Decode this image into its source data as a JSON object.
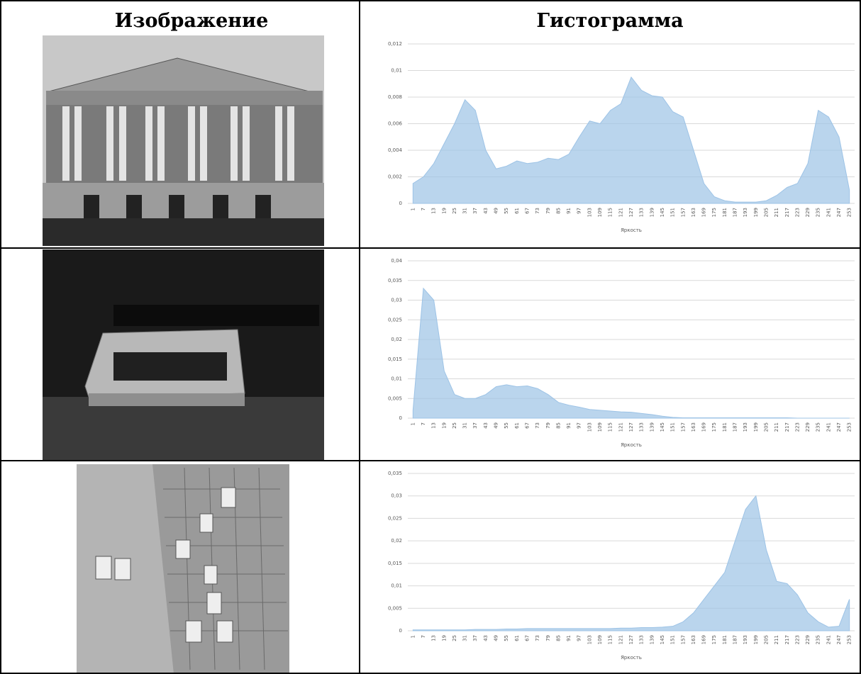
{
  "header": {
    "image": "Изображение",
    "histogram": "Гистограмма"
  },
  "chart_data": [
    {
      "type": "area",
      "x_label": "Яркость",
      "color": "#9dc3e6",
      "categories": [
        "1",
        "7",
        "13",
        "19",
        "25",
        "31",
        "37",
        "43",
        "49",
        "55",
        "61",
        "67",
        "73",
        "79",
        "85",
        "91",
        "97",
        "103",
        "109",
        "115",
        "121",
        "127",
        "133",
        "139",
        "145",
        "151",
        "157",
        "163",
        "169",
        "175",
        "181",
        "187",
        "193",
        "199",
        "205",
        "211",
        "217",
        "223",
        "229",
        "235",
        "241",
        "247",
        "253"
      ],
      "values": [
        0.0015,
        0.002,
        0.003,
        0.0045,
        0.006,
        0.0078,
        0.007,
        0.004,
        0.0026,
        0.0028,
        0.0032,
        0.003,
        0.0031,
        0.0034,
        0.0033,
        0.0037,
        0.005,
        0.0062,
        0.006,
        0.007,
        0.0075,
        0.0095,
        0.0085,
        0.0081,
        0.008,
        0.0069,
        0.0065,
        0.004,
        0.0015,
        0.0005,
        0.0002,
        0.0001,
        0.0001,
        0.0001,
        0.0002,
        0.0006,
        0.0012,
        0.0015,
        0.003,
        0.007,
        0.0065,
        0.005,
        0.001
      ],
      "ylim": [
        0,
        0.012
      ],
      "yticks": [
        0,
        {
          "value": 0.002,
          "label": "0,002"
        },
        {
          "value": 0.004,
          "label": "0,004"
        },
        {
          "value": 0.006,
          "label": "0,006"
        },
        {
          "value": 0.008,
          "label": "0,008"
        },
        {
          "value": 0.01,
          "label": "0,01"
        },
        {
          "value": 0.012,
          "label": "0,012"
        }
      ],
      "grid": true
    },
    {
      "type": "area",
      "x_label": "Яркость",
      "color": "#9dc3e6",
      "categories": [
        "1",
        "7",
        "13",
        "19",
        "25",
        "31",
        "37",
        "43",
        "49",
        "55",
        "61",
        "67",
        "73",
        "79",
        "85",
        "91",
        "97",
        "103",
        "109",
        "115",
        "121",
        "127",
        "133",
        "139",
        "145",
        "151",
        "157",
        "163",
        "169",
        "175",
        "181",
        "187",
        "193",
        "199",
        "205",
        "211",
        "217",
        "223",
        "229",
        "235",
        "241",
        "247",
        "253"
      ],
      "values": [
        0.002,
        0.033,
        0.03,
        0.012,
        0.006,
        0.005,
        0.005,
        0.006,
        0.008,
        0.0085,
        0.008,
        0.0082,
        0.0075,
        0.006,
        0.004,
        0.0033,
        0.0028,
        0.0022,
        0.002,
        0.0018,
        0.0016,
        0.0015,
        0.0012,
        0.0009,
        0.0005,
        0.0002,
        0.0001,
        0.0001,
        0.0001,
        0.0001,
        0.0001,
        0.0001,
        0.0001,
        0.0001,
        0.0001,
        0.0001,
        0.0001,
        0,
        0,
        0,
        0,
        0,
        0
      ],
      "ylim": [
        0,
        0.04
      ],
      "yticks": [
        0,
        {
          "value": 0.005,
          "label": "0,005"
        },
        {
          "value": 0.01,
          "label": "0,01"
        },
        {
          "value": 0.015,
          "label": "0,015"
        },
        {
          "value": 0.02,
          "label": "0,02"
        },
        {
          "value": 0.025,
          "label": "0,025"
        },
        {
          "value": 0.03,
          "label": "0,03"
        },
        {
          "value": 0.035,
          "label": "0,035"
        },
        {
          "value": 0.04,
          "label": "0,04"
        }
      ],
      "grid": true
    },
    {
      "type": "area",
      "x_label": "Яркость",
      "color": "#9dc3e6",
      "categories": [
        "1",
        "7",
        "13",
        "19",
        "25",
        "31",
        "37",
        "43",
        "49",
        "55",
        "61",
        "67",
        "73",
        "79",
        "85",
        "91",
        "97",
        "103",
        "109",
        "115",
        "121",
        "127",
        "133",
        "139",
        "145",
        "151",
        "157",
        "163",
        "169",
        "175",
        "181",
        "187",
        "193",
        "199",
        "205",
        "211",
        "217",
        "223",
        "229",
        "235",
        "241",
        "247",
        "253"
      ],
      "values": [
        0.0002,
        0.0002,
        0.0002,
        0.0002,
        0.0002,
        0.0002,
        0.0003,
        0.0003,
        0.0003,
        0.0004,
        0.0004,
        0.0005,
        0.0005,
        0.0005,
        0.0005,
        0.0005,
        0.0005,
        0.0005,
        0.0005,
        0.0005,
        0.0006,
        0.0006,
        0.0007,
        0.0007,
        0.0008,
        0.001,
        0.002,
        0.004,
        0.007,
        0.01,
        0.013,
        0.02,
        0.027,
        0.03,
        0.018,
        0.011,
        0.0105,
        0.008,
        0.004,
        0.002,
        0.0008,
        0.001,
        0.007
      ],
      "ylim": [
        0,
        0.035
      ],
      "yticks": [
        0,
        {
          "value": 0.005,
          "label": "0,005"
        },
        {
          "value": 0.01,
          "label": "0,01"
        },
        {
          "value": 0.015,
          "label": "0,015"
        },
        {
          "value": 0.02,
          "label": "0,02"
        },
        {
          "value": 0.025,
          "label": "0,025"
        },
        {
          "value": 0.03,
          "label": "0,03"
        },
        {
          "value": 0.035,
          "label": "0,035"
        }
      ],
      "grid": true
    }
  ]
}
